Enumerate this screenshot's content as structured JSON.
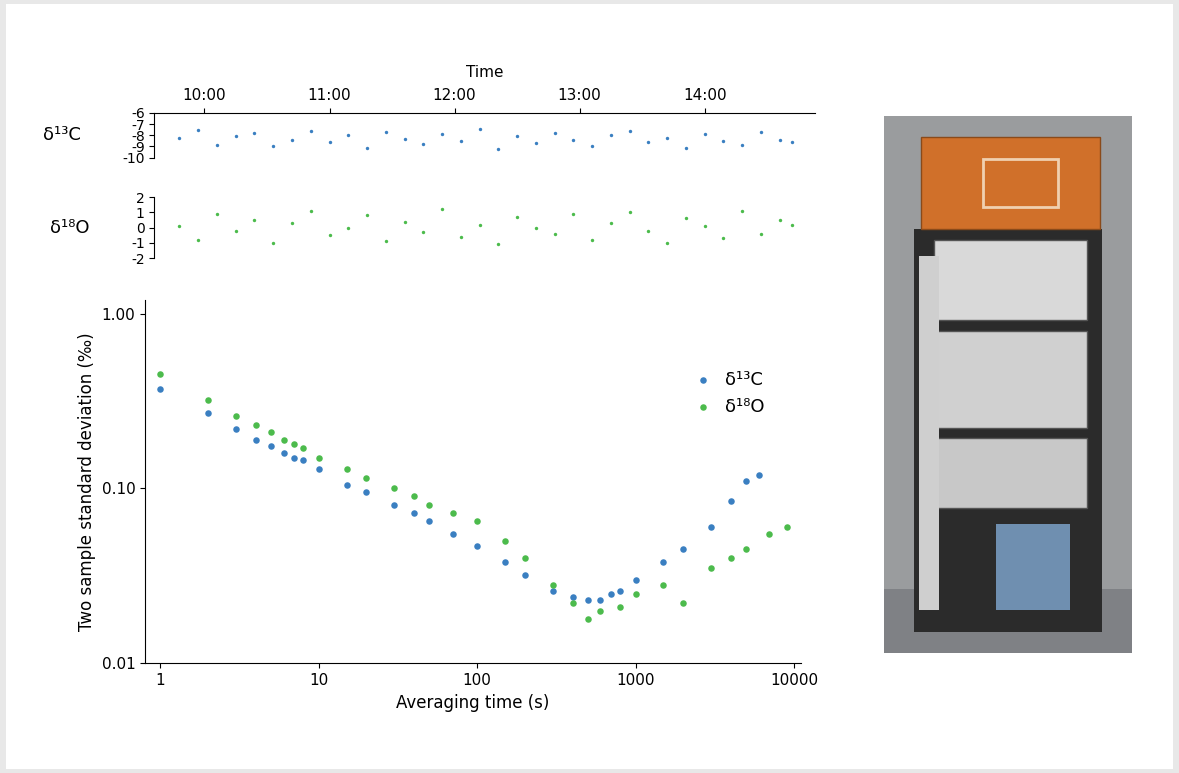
{
  "chart_data": [
    {
      "type": "scatter",
      "x_label": "Time",
      "xlim": [
        9.6,
        14.88
      ],
      "xticks": [
        {
          "value": 10,
          "label": "10:00"
        },
        {
          "value": 11,
          "label": "11:00"
        },
        {
          "value": 12,
          "label": "12:00"
        },
        {
          "value": 13,
          "label": "13:00"
        },
        {
          "value": 14,
          "label": "14:00"
        }
      ],
      "ylim": [
        -10,
        -6
      ],
      "yticks": [
        -10,
        -9,
        -8,
        -7,
        -6
      ],
      "series": [
        {
          "name": "δ¹³C",
          "color": "#3a7fc1",
          "marker": "dot",
          "x": [
            9.8,
            9.95,
            10.1,
            10.25,
            10.4,
            10.55,
            10.7,
            10.85,
            11.0,
            11.15,
            11.3,
            11.45,
            11.6,
            11.75,
            11.9,
            12.05,
            12.2,
            12.35,
            12.5,
            12.65,
            12.8,
            12.95,
            13.1,
            13.25,
            13.4,
            13.55,
            13.7,
            13.85,
            14.0,
            14.15,
            14.3,
            14.45,
            14.6,
            14.7
          ],
          "values": [
            -8.2,
            -7.5,
            -8.9,
            -8.1,
            -7.8,
            -9.0,
            -8.4,
            -7.6,
            -8.6,
            -8.0,
            -9.1,
            -7.7,
            -8.3,
            -8.8,
            -7.9,
            -8.5,
            -7.4,
            -9.2,
            -8.1,
            -8.7,
            -7.8,
            -8.4,
            -9.0,
            -8.0,
            -7.6,
            -8.6,
            -8.2,
            -9.1,
            -7.9,
            -8.5,
            -8.9,
            -7.7,
            -8.4,
            -8.6
          ]
        }
      ]
    },
    {
      "type": "scatter",
      "tick_labels": "y",
      "xlim": [
        9.6,
        14.88
      ],
      "ylim": [
        -2,
        2
      ],
      "yticks": [
        -2,
        -1,
        0,
        1,
        2
      ],
      "series": [
        {
          "name": "δ¹⁸O",
          "color": "#4cbb4c",
          "marker": "dot",
          "x": [
            9.8,
            9.95,
            10.1,
            10.25,
            10.4,
            10.55,
            10.7,
            10.85,
            11.0,
            11.15,
            11.3,
            11.45,
            11.6,
            11.75,
            11.9,
            12.05,
            12.2,
            12.35,
            12.5,
            12.65,
            12.8,
            12.95,
            13.1,
            13.25,
            13.4,
            13.55,
            13.7,
            13.85,
            14.0,
            14.15,
            14.3,
            14.45,
            14.6,
            14.7
          ],
          "values": [
            0.1,
            -0.8,
            0.9,
            -0.2,
            0.5,
            -1.0,
            0.3,
            1.1,
            -0.5,
            0.0,
            0.8,
            -0.9,
            0.4,
            -0.3,
            1.2,
            -0.6,
            0.2,
            -1.1,
            0.7,
            0.0,
            -0.4,
            0.9,
            -0.8,
            0.3,
            1.0,
            -0.2,
            -1.0,
            0.6,
            0.1,
            -0.7,
            1.1,
            -0.4,
            0.5,
            0.2
          ]
        }
      ]
    },
    {
      "type": "scatter",
      "log": true,
      "legend": "upper right",
      "x_label": "Averaging time (s)",
      "y_label": "Two sample standard deviation (‰)",
      "xlim": [
        0.8,
        11000
      ],
      "xticks": [
        1,
        10,
        100,
        1000,
        10000
      ],
      "ylim": [
        0.01,
        1.2
      ],
      "yticks": [
        {
          "value": 0.01,
          "label": "0.01"
        },
        {
          "value": 0.1,
          "label": "0.10"
        },
        {
          "value": 1,
          "label": "1.00"
        }
      ],
      "series": [
        {
          "name": "δ¹³C",
          "color": "#3a7fc1",
          "marker": "dot",
          "x": [
            1,
            2,
            3,
            4,
            5,
            6,
            7,
            8,
            10,
            15,
            20,
            30,
            40,
            50,
            70,
            100,
            150,
            200,
            300,
            400,
            500,
            600,
            700,
            800,
            1000,
            1500,
            2000,
            3000,
            4000,
            5000,
            6000
          ],
          "values": [
            0.37,
            0.27,
            0.22,
            0.19,
            0.175,
            0.16,
            0.15,
            0.145,
            0.13,
            0.105,
            0.095,
            0.08,
            0.072,
            0.065,
            0.055,
            0.047,
            0.038,
            0.032,
            0.026,
            0.024,
            0.023,
            0.023,
            0.025,
            0.026,
            0.03,
            0.038,
            0.045,
            0.06,
            0.085,
            0.11,
            0.12
          ]
        },
        {
          "name": "δ¹⁸O",
          "color": "#4cbb4c",
          "marker": "dot",
          "x": [
            1,
            2,
            3,
            4,
            5,
            6,
            7,
            8,
            10,
            15,
            20,
            30,
            40,
            50,
            70,
            100,
            150,
            200,
            300,
            400,
            500,
            600,
            800,
            1000,
            1500,
            2000,
            3000,
            4000,
            5000,
            7000,
            9000
          ],
          "values": [
            0.45,
            0.32,
            0.26,
            0.23,
            0.21,
            0.19,
            0.18,
            0.17,
            0.15,
            0.13,
            0.115,
            0.1,
            0.09,
            0.08,
            0.072,
            0.065,
            0.05,
            0.04,
            0.028,
            0.022,
            0.018,
            0.02,
            0.021,
            0.025,
            0.028,
            0.022,
            0.035,
            0.04,
            0.045,
            0.055,
            0.06
          ]
        }
      ]
    }
  ]
}
